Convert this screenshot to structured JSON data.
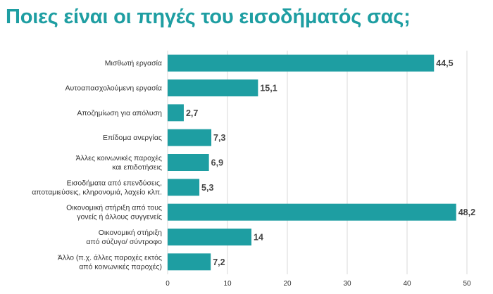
{
  "title": "Ποιες είναι οι πηγές του εισοδήματός σας;",
  "colors": {
    "bar": "#1e9ea2",
    "title": "#1e9ea2",
    "grid": "#d9d9d9"
  },
  "chart_data": {
    "type": "bar",
    "orientation": "horizontal",
    "categories": [
      [
        "Μισθωτή εργασία"
      ],
      [
        "Αυτοαπασχολούμενη εργασία"
      ],
      [
        "Αποζημίωση για απόλυση"
      ],
      [
        "Επίδομα ανεργίας"
      ],
      [
        "Άλλες κοινωνικές παροχές",
        "και επιδοτήσεις"
      ],
      [
        "Εισοδήματα από επενδύσεις,",
        "αποταμιεύσεις, κληρονομιά, λαχείο κλπ."
      ],
      [
        "Οικονομική στήριξη από τους",
        "γονείς ή άλλους συγγενείς"
      ],
      [
        "Οικονομική στήριξη",
        "από σύζυγο/ σύντροφο"
      ],
      [
        "Άλλο (π.χ. άλλες παροχές εκτός",
        "από κοινωνικές παροχές)"
      ]
    ],
    "values": [
      44.5,
      15.1,
      2.7,
      7.3,
      6.9,
      5.3,
      48.2,
      14,
      7.2
    ],
    "value_labels": [
      "44,5",
      "15,1",
      "2,7",
      "7,3",
      "6,9",
      "5,3",
      "48,2",
      "14",
      "7,2"
    ],
    "xlim": [
      0,
      50
    ],
    "xticks": [
      0,
      10,
      20,
      30,
      40,
      50
    ],
    "grid": "vertical",
    "legend": "none"
  }
}
